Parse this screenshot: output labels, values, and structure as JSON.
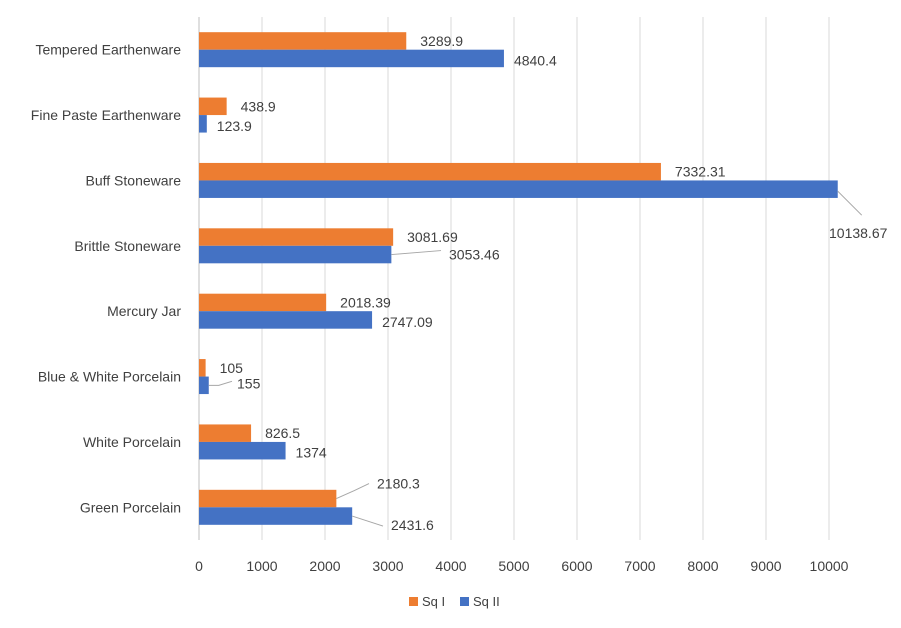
{
  "chart_data": {
    "type": "bar",
    "orientation": "horizontal",
    "title": "",
    "xlabel": "",
    "ylabel": "",
    "categories": [
      "Tempered Earthenware",
      "Fine Paste Earthenware",
      "Buff Stoneware",
      "Brittle Stoneware",
      "Mercury Jar",
      "Blue & White Porcelain",
      "White Porcelain",
      "Green Porcelain"
    ],
    "series": [
      {
        "name": "Sq I",
        "color": "#ED7D31",
        "values": [
          3289.9,
          438.9,
          7332.31,
          3081.69,
          2018.39,
          105,
          826.5,
          2180.3
        ],
        "labels": [
          "3289.9",
          "438.9",
          "7332.31",
          "3081.69",
          "2018.39",
          "105",
          "826.5",
          "2180.3"
        ]
      },
      {
        "name": "Sq II",
        "color": "#4472C4",
        "values": [
          4840.4,
          123.9,
          10138.67,
          3053.46,
          2747.09,
          155,
          1374,
          2431.6
        ],
        "labels": [
          "4840.4",
          "123.9",
          "10138.67",
          "3053.46",
          "2747.09",
          "155",
          "1374",
          "2431.6"
        ]
      }
    ],
    "xlim": [
      0,
      10000
    ],
    "xticks": [
      0,
      1000,
      2000,
      3000,
      4000,
      5000,
      6000,
      7000,
      8000,
      9000,
      10000
    ],
    "xtick_labels": [
      "0",
      "1000",
      "2000",
      "3000",
      "4000",
      "5000",
      "6000",
      "7000",
      "8000",
      "9000",
      "10000"
    ],
    "grid": true,
    "legend": {
      "placement": "bottom",
      "entries": [
        "Sq I",
        "Sq II"
      ]
    }
  }
}
